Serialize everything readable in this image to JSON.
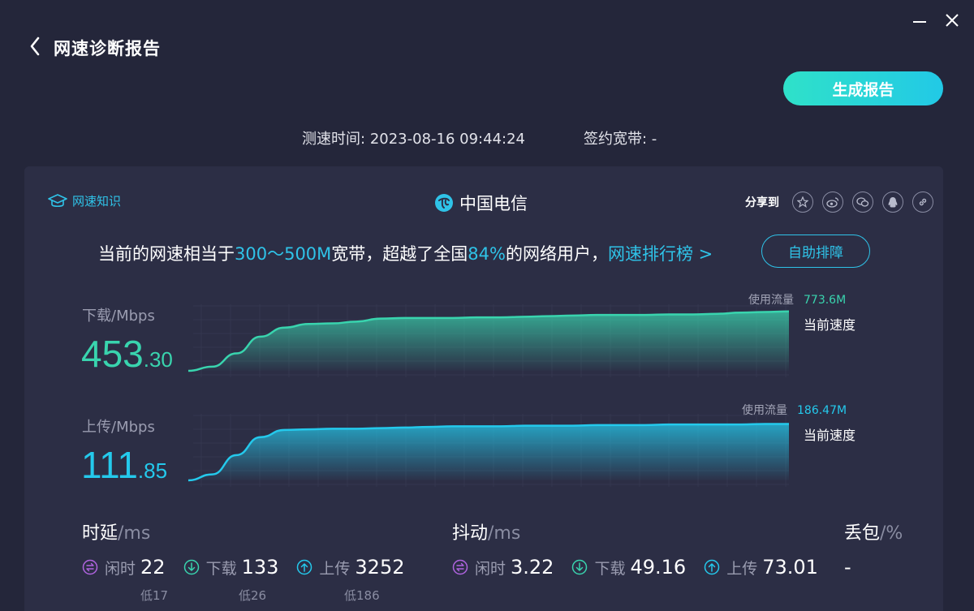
{
  "window": {
    "title": "网速诊断报告",
    "generate_button": "生成报告"
  },
  "meta": {
    "test_time_label": "测速时间:",
    "test_time": "2023-08-16 09:44:24",
    "broadband_label": "签约宽带:",
    "broadband_value": "-"
  },
  "card": {
    "knowledge_label": "网速知识",
    "isp_name": "中国电信",
    "share_label": "分享到",
    "share_icons": [
      "qzone-icon",
      "weibo-icon",
      "wechat-icon",
      "qq-icon",
      "link-icon"
    ],
    "summary": {
      "prefix": "当前的网速相当于",
      "range": "300～500M",
      "mid": "宽带，超越了全国",
      "percent": "84%",
      "suffix": "的网络用户，",
      "rank_link": "网速排行榜 >"
    },
    "self_check_button": "自助排障"
  },
  "download": {
    "label": "下载/Mbps",
    "value_int": "453",
    "value_dec": ".30",
    "usage_label": "使用流量",
    "usage_value": "773.6M",
    "current_label": "当前速度",
    "color": "#39d4ae"
  },
  "upload": {
    "label": "上传/Mbps",
    "value_int": "111",
    "value_dec": ".85",
    "usage_label": "使用流量",
    "usage_value": "186.47M",
    "current_label": "当前速度",
    "color": "#24c9ec"
  },
  "chart_data": [
    {
      "type": "area",
      "series": [
        {
          "name": "下载",
          "values": [
            0,
            7,
            29,
            57,
            72,
            78,
            79,
            82,
            87,
            88,
            88,
            88,
            89,
            89,
            90,
            91,
            92,
            93,
            93,
            93,
            94,
            94,
            95,
            97,
            98,
            99
          ]
        }
      ]
    },
    {
      "type": "area",
      "series": [
        {
          "name": "上传",
          "values": [
            0,
            10,
            42,
            72,
            84,
            85,
            86,
            86,
            87,
            88,
            89,
            90,
            90,
            90,
            91,
            91,
            91,
            92,
            92,
            92,
            93,
            93,
            93,
            93,
            94,
            94
          ]
        }
      ]
    }
  ],
  "latency": {
    "title": "时延",
    "unit": "/ms",
    "idle_label": "闲时",
    "idle": "22",
    "idle_low": "低17",
    "down_label": "下载",
    "down": "133",
    "down_low": "低26",
    "up_label": "上传",
    "up": "3252",
    "up_low": "低186"
  },
  "jitter": {
    "title": "抖动",
    "unit": "/ms",
    "idle_label": "闲时",
    "idle": "3.22",
    "down_label": "下载",
    "down": "49.16",
    "up_label": "上传",
    "up": "73.01"
  },
  "loss": {
    "title": "丢包",
    "unit": "/%",
    "value": "-"
  },
  "colors": {
    "accent": "#2fc3e8",
    "download": "#39d4ae",
    "upload": "#24c9ec",
    "background": "#24263a",
    "card": "#2c2e45"
  }
}
